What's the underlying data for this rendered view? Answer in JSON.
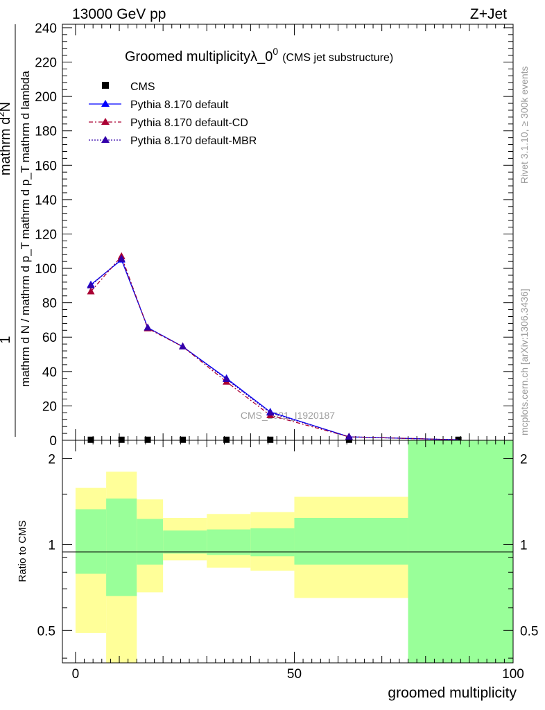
{
  "header": {
    "left": "13000 GeV pp",
    "right": "Z+Jet"
  },
  "side_labels": {
    "rivet": "Rivet 3.1.10, ≥ 300k events",
    "mcplots": "mcplots.cern.ch [arXiv:1306.3436]"
  },
  "main_ylabel": {
    "top": "1",
    "bottom": "mathrm d N / mathrm d p_T mathrm d p_T mathrm d lambda",
    "numerator": "mathrm d^{2}N",
    "fraction_bar": "—"
  },
  "ratio_ylabel": "Ratio to CMS",
  "xlabel": "groomed multiplicity",
  "watermark": "CMS_2021_I1920187",
  "colors": {
    "default": "#0000ff",
    "cd": "#aa0033",
    "mbr": "#3300aa",
    "band_inner": "#99ff99",
    "band_outer": "#ffff99",
    "data": "#000000"
  },
  "chart_data": [
    {
      "type": "line",
      "title": "Groomed multiplicityλ_0^{0}",
      "title_base": "Groomed multiplicityλ_0",
      "title_sup": "0",
      "subtitle": "(CMS jet substructure)",
      "xlim": [
        -3,
        100
      ],
      "ylim": [
        0,
        242
      ],
      "yticks": [
        0,
        20,
        40,
        60,
        80,
        100,
        120,
        140,
        160,
        180,
        200,
        220,
        240
      ],
      "legend_placement": "top-left",
      "legend": [
        {
          "label": "CMS",
          "style": "data"
        },
        {
          "label": "Pythia 8.170 default",
          "style": "default"
        },
        {
          "label": "Pythia 8.170 default-CD",
          "style": "cd"
        },
        {
          "label": "Pythia 8.170 default-MBR",
          "style": "mbr"
        }
      ],
      "series": [
        {
          "name": "CMS",
          "style": "data",
          "x": [
            3.5,
            10.5,
            16.5,
            24.5,
            34.5,
            44.5,
            62.5,
            87.5
          ],
          "y": [
            0.3,
            0.3,
            0.3,
            0.3,
            0.3,
            0.3,
            0.3,
            0.3
          ]
        },
        {
          "name": "Pythia 8.170 default",
          "style": "default",
          "x": [
            3.5,
            10.5,
            16.5,
            24.5,
            34.5,
            44.5,
            62.5,
            87.5
          ],
          "y": [
            90.5,
            105,
            65.5,
            54.5,
            36,
            16.5,
            2,
            0.3
          ]
        },
        {
          "name": "Pythia 8.170 default-CD",
          "style": "cd",
          "x": [
            3.5,
            10.5,
            16.5,
            24.5,
            34.5,
            44.5,
            62.5,
            87.5
          ],
          "y": [
            86.5,
            107,
            65,
            54.5,
            34,
            14.5,
            2,
            0.3
          ]
        },
        {
          "name": "Pythia 8.170 default-MBR",
          "style": "mbr",
          "x": [
            3.5,
            10.5,
            16.5,
            24.5,
            34.5,
            44.5,
            62.5,
            87.5
          ],
          "y": [
            90,
            105.5,
            65.5,
            54.5,
            35.5,
            16,
            2,
            0.3
          ]
        }
      ]
    },
    {
      "type": "area",
      "ylabel": "Ratio to CMS",
      "xlabel": "groomed multiplicity",
      "xlim": [
        -3,
        100
      ],
      "xticks": [
        0,
        50,
        100
      ],
      "ylim": [
        0.385,
        2.32
      ],
      "ylog": true,
      "yticks": [
        0.5,
        1,
        2
      ],
      "reference_line": 1,
      "bins": [
        {
          "x0": 0,
          "x1": 7,
          "inner": [
            0.79,
            1.33
          ],
          "outer": [
            0.49,
            1.58
          ]
        },
        {
          "x0": 7,
          "x1": 14,
          "inner": [
            0.66,
            1.45
          ],
          "outer": [
            0.28,
            1.8
          ]
        },
        {
          "x0": 14,
          "x1": 20,
          "inner": [
            0.85,
            1.23
          ],
          "outer": [
            0.68,
            1.44
          ]
        },
        {
          "x0": 20,
          "x1": 30,
          "inner": [
            0.93,
            1.12
          ],
          "outer": [
            0.88,
            1.24
          ]
        },
        {
          "x0": 30,
          "x1": 40,
          "inner": [
            0.92,
            1.13
          ],
          "outer": [
            0.83,
            1.28
          ]
        },
        {
          "x0": 40,
          "x1": 50,
          "inner": [
            0.91,
            1.14
          ],
          "outer": [
            0.81,
            1.3
          ]
        },
        {
          "x0": 50,
          "x1": 76,
          "inner": [
            0.85,
            1.24
          ],
          "outer": [
            0.65,
            1.47
          ]
        },
        {
          "x0": 76,
          "x1": 100,
          "inner": [
            0.3,
            3.0
          ],
          "outer": [
            0.3,
            3.0
          ]
        }
      ]
    }
  ]
}
